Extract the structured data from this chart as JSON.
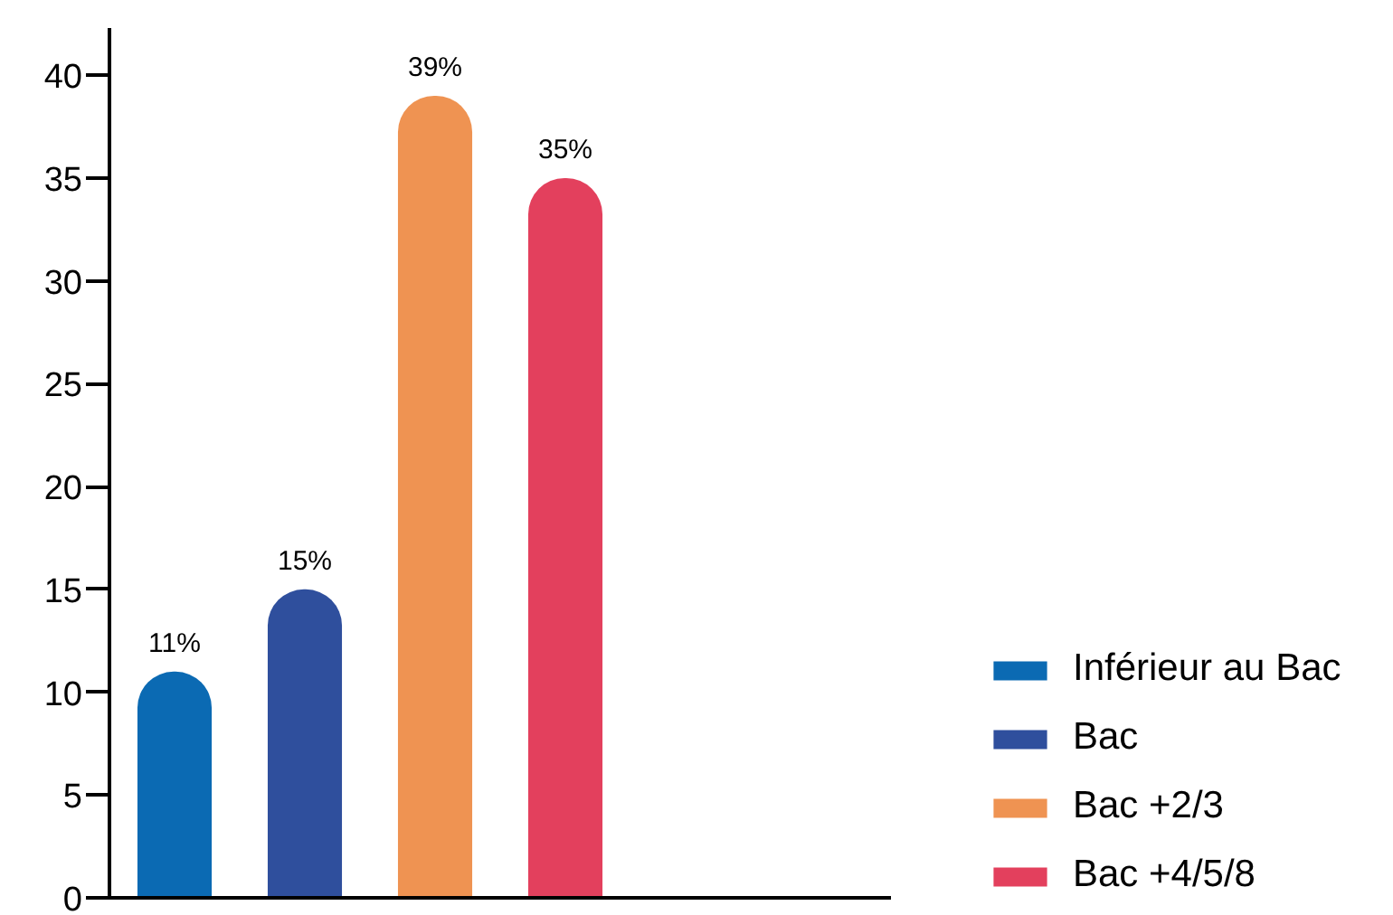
{
  "chart_data": {
    "type": "bar",
    "categories": [
      null,
      null,
      null,
      null,
      null,
      null
    ],
    "tick_labels": "y",
    "ylim": [
      0,
      42.3
    ],
    "yticks": [
      0,
      5,
      10,
      15,
      20,
      25,
      30,
      35,
      40
    ],
    "grid": false,
    "legend": "bottom right",
    "series": [
      {
        "name": "Inférieur au Bac",
        "color": "#0b6ab3",
        "values": [
          11,
          null,
          null,
          null,
          null,
          null
        ],
        "value_labels": [
          "11%",
          null,
          null,
          null,
          null,
          null
        ]
      },
      {
        "name": "Bac",
        "color": "#2f4f9d",
        "values": [
          null,
          15,
          null,
          null,
          null,
          null
        ],
        "value_labels": [
          null,
          "15%",
          null,
          null,
          null,
          null
        ]
      },
      {
        "name": "Bac +2/3",
        "color": "#ef9352",
        "values": [
          null,
          null,
          39,
          null,
          null,
          null
        ],
        "value_labels": [
          null,
          null,
          "39%",
          null,
          null,
          null
        ]
      },
      {
        "name": "Bac +4/5/8",
        "color": "#e3405d",
        "values": [
          null,
          null,
          null,
          35,
          null,
          null
        ],
        "value_labels": [
          null,
          null,
          null,
          "35%",
          null,
          null
        ]
      }
    ]
  }
}
